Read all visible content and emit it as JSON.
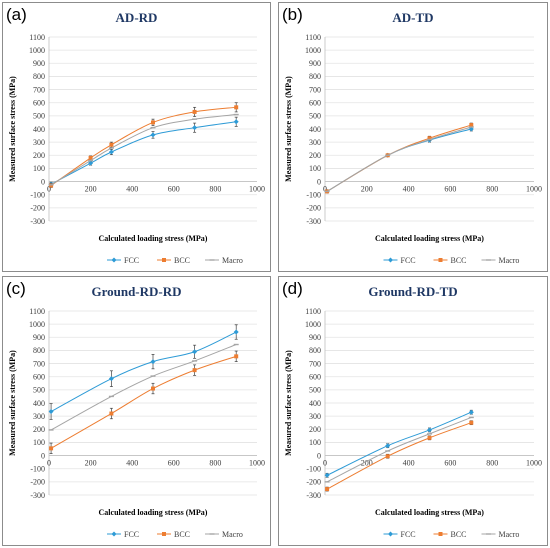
{
  "colors": {
    "FCC": "#2e9bd6",
    "BCC": "#ed7d31",
    "Macro": "#a5a5a5",
    "title": "#1f3864",
    "grid": "#e3e3e3",
    "axis": "#bfbfbf"
  },
  "chart_data": [
    {
      "type": "line",
      "panel_label": "(a)",
      "title": "AD-RD",
      "xlabel": "Calculated loading stress (MPa)",
      "ylabel": "Measured surface stress (MPa)",
      "xlim": [
        0,
        1000
      ],
      "ylim": [
        -300,
        1100
      ],
      "xticks": [
        0,
        200,
        400,
        600,
        800,
        1000
      ],
      "yticks": [
        -300,
        -200,
        -100,
        0,
        100,
        200,
        300,
        400,
        500,
        600,
        700,
        800,
        900,
        1000,
        1100
      ],
      "grid": true,
      "legend_position": "bottom",
      "x": [
        10,
        200,
        300,
        500,
        700,
        900
      ],
      "series": [
        {
          "name": "FCC",
          "values": [
            -20,
            140,
            225,
            355,
            410,
            455
          ],
          "errors": [
            15,
            15,
            20,
            25,
            35,
            35
          ]
        },
        {
          "name": "BCC",
          "values": [
            -30,
            180,
            280,
            450,
            530,
            565
          ],
          "errors": [
            15,
            15,
            20,
            25,
            35,
            35
          ]
        },
        {
          "name": "Macro",
          "values": [
            -25,
            160,
            255,
            410,
            475,
            510
          ],
          "errors": [
            0,
            0,
            0,
            0,
            0,
            0
          ]
        }
      ]
    },
    {
      "type": "line",
      "panel_label": "(b)",
      "title": "AD-TD",
      "xlabel": "Calculated loading stress (MPa)",
      "ylabel": "Measured surface stress (MPa)",
      "xlim": [
        0,
        1000
      ],
      "ylim": [
        -300,
        1100
      ],
      "xticks": [
        0,
        200,
        400,
        600,
        800,
        1000
      ],
      "yticks": [
        -300,
        -200,
        -100,
        0,
        100,
        200,
        300,
        400,
        500,
        600,
        700,
        800,
        900,
        1000,
        1100
      ],
      "grid": true,
      "legend_position": "bottom",
      "x": [
        10,
        300,
        500,
        700
      ],
      "series": [
        {
          "name": "FCC",
          "values": [
            -75,
            200,
            315,
            400
          ],
          "errors": [
            10,
            10,
            15,
            15
          ]
        },
        {
          "name": "BCC",
          "values": [
            -75,
            200,
            330,
            430
          ],
          "errors": [
            10,
            10,
            15,
            15
          ]
        },
        {
          "name": "Macro",
          "values": [
            -75,
            200,
            320,
            415
          ],
          "errors": [
            0,
            0,
            0,
            0
          ]
        }
      ]
    },
    {
      "type": "line",
      "panel_label": "(c)",
      "title": "Ground-RD-RD",
      "xlabel": "Calculated loading stress (MPa)",
      "ylabel": "Measured surface stress (MPa)",
      "xlim": [
        0,
        1000
      ],
      "ylim": [
        -300,
        1100
      ],
      "xticks": [
        0,
        200,
        400,
        600,
        800,
        1000
      ],
      "yticks": [
        -300,
        -200,
        -100,
        0,
        100,
        200,
        300,
        400,
        500,
        600,
        700,
        800,
        900,
        1000,
        1100
      ],
      "grid": true,
      "legend_position": "bottom",
      "x": [
        10,
        300,
        500,
        700,
        900
      ],
      "series": [
        {
          "name": "FCC",
          "values": [
            335,
            585,
            715,
            790,
            940
          ],
          "errors": [
            60,
            60,
            55,
            50,
            55
          ]
        },
        {
          "name": "BCC",
          "values": [
            55,
            320,
            510,
            650,
            755
          ],
          "errors": [
            40,
            40,
            40,
            40,
            40
          ]
        },
        {
          "name": "Macro",
          "values": [
            195,
            450,
            605,
            720,
            845
          ],
          "errors": [
            0,
            0,
            0,
            0,
            0
          ]
        }
      ]
    },
    {
      "type": "line",
      "panel_label": "(d)",
      "title": "Ground-RD-TD",
      "xlabel": "Calculated loading stress (MPa)",
      "ylabel": "Measured surface stress (MPa)",
      "xlim": [
        0,
        1000
      ],
      "ylim": [
        -300,
        1100
      ],
      "xticks": [
        0,
        200,
        400,
        600,
        800,
        1000
      ],
      "yticks": [
        -300,
        -200,
        -100,
        0,
        100,
        200,
        300,
        400,
        500,
        600,
        700,
        800,
        900,
        1000,
        1100
      ],
      "grid": true,
      "legend_position": "bottom",
      "x": [
        10,
        300,
        500,
        700
      ],
      "series": [
        {
          "name": "FCC",
          "values": [
            -150,
            75,
            195,
            330
          ],
          "errors": [
            15,
            15,
            15,
            15
          ]
        },
        {
          "name": "BCC",
          "values": [
            -255,
            -5,
            135,
            250
          ],
          "errors": [
            15,
            15,
            15,
            15
          ]
        },
        {
          "name": "Macro",
          "values": [
            -200,
            35,
            165,
            290
          ],
          "errors": [
            0,
            0,
            0,
            0
          ]
        }
      ]
    }
  ]
}
